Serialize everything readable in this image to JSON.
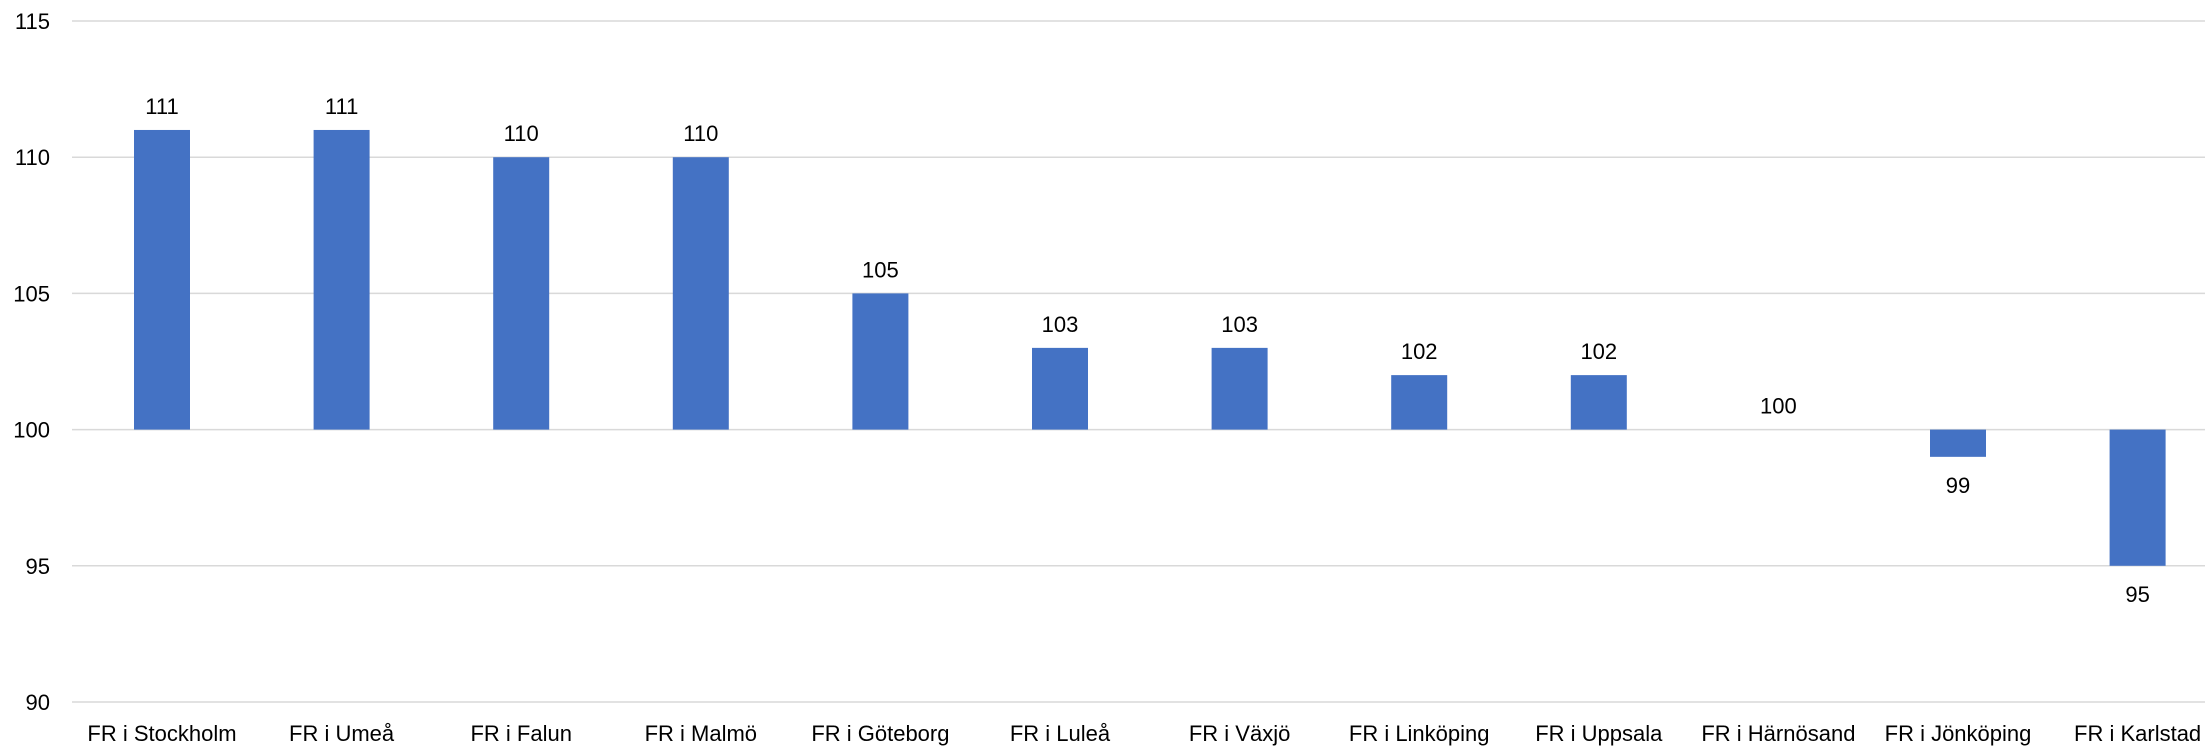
{
  "chart_data": {
    "type": "bar",
    "categories": [
      "FR i Stockholm",
      "FR i Umeå",
      "FR i Falun",
      "FR i Malmö",
      "FR i Göteborg",
      "FR i Luleå",
      "FR i Växjö",
      "FR i Linköping",
      "FR i Uppsala",
      "FR i Härnösand",
      "FR i Jönköping",
      "FR i Karlstad"
    ],
    "values": [
      111,
      111,
      110,
      110,
      105,
      103,
      103,
      102,
      102,
      100,
      99,
      95
    ],
    "baseline": 100,
    "ylim": [
      90,
      115
    ],
    "yticks": [
      90,
      95,
      100,
      105,
      110,
      115
    ],
    "ytick_labels": [
      "90",
      "95",
      "100",
      "105",
      "110",
      "115"
    ],
    "data_labels": [
      "111",
      "111",
      "110",
      "110",
      "105",
      "103",
      "103",
      "102",
      "102",
      "100",
      "99",
      "95"
    ],
    "grid": true,
    "legend": "none",
    "bar_color": "#4472c4",
    "title": "",
    "xlabel": "",
    "ylabel": ""
  }
}
